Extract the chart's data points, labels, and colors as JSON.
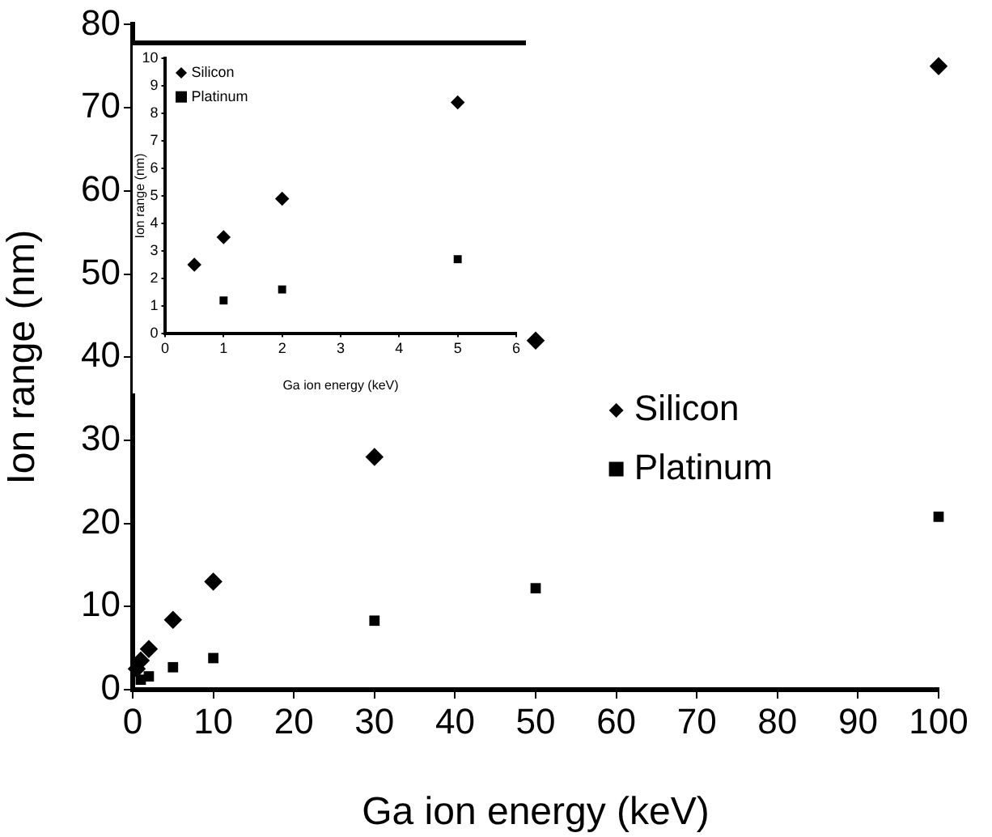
{
  "chart_data": [
    {
      "type": "scatter",
      "xlabel": "Ga ion energy (keV)",
      "ylabel": "Ion range (nm)",
      "xlim": [
        0,
        100
      ],
      "xticks": [
        0,
        10,
        20,
        30,
        40,
        50,
        60,
        70,
        80,
        90,
        100
      ],
      "ylim": [
        0,
        80
      ],
      "yticks": [
        0,
        10,
        20,
        30,
        40,
        50,
        60,
        70,
        80
      ],
      "grid": false,
      "legend": "right",
      "series": [
        {
          "name": "Silicon",
          "color": "#000000",
          "marker": "diamond",
          "x": [
            0.5,
            1,
            2,
            5,
            10,
            30,
            50,
            100
          ],
          "values": [
            2.5,
            3.5,
            4.9,
            8.4,
            13,
            28,
            42,
            75
          ]
        },
        {
          "name": "Platinum",
          "color": "#000000",
          "marker": "square",
          "x": [
            1,
            2,
            5,
            10,
            30,
            50,
            100
          ],
          "values": [
            1.2,
            1.6,
            2.7,
            3.8,
            8.3,
            12.2,
            20.8
          ]
        }
      ]
    },
    {
      "type": "scatter",
      "xlabel": "Ga ion energy (keV)",
      "ylabel": "Ion range (nm)",
      "xlim": [
        0,
        6
      ],
      "xticks": [
        0,
        1,
        2,
        3,
        4,
        5,
        6
      ],
      "ylim": [
        0,
        10
      ],
      "yticks": [
        0,
        1,
        2,
        3,
        4,
        5,
        6,
        7,
        8,
        9,
        10
      ],
      "grid": false,
      "legend": "top left",
      "series": [
        {
          "name": "Silicon",
          "color": "#000000",
          "marker": "diamond",
          "x": [
            0.5,
            1,
            2,
            5
          ],
          "values": [
            2.5,
            3.5,
            4.9,
            8.4
          ]
        },
        {
          "name": "Platinum",
          "color": "#000000",
          "marker": "square",
          "x": [
            1,
            2,
            5
          ],
          "values": [
            1.2,
            1.6,
            2.7
          ]
        }
      ]
    }
  ]
}
